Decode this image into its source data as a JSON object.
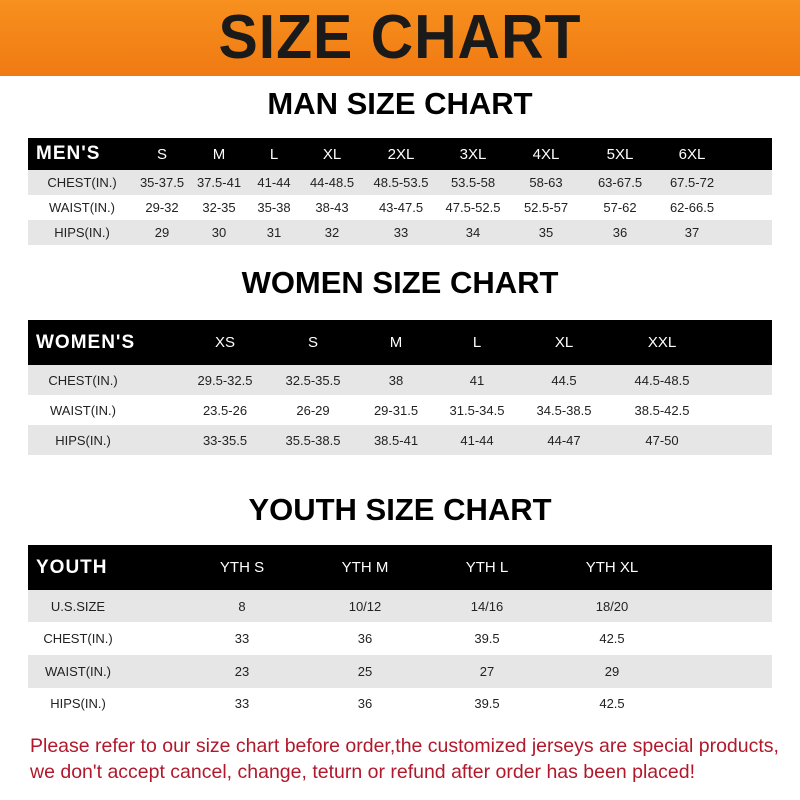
{
  "banner_title": "SIZE CHART",
  "men": {
    "title": "MAN SIZE CHART",
    "header": [
      "MEN'S",
      "S",
      "M",
      "L",
      "XL",
      "2XL",
      "3XL",
      "4XL",
      "5XL",
      "6XL"
    ],
    "rows": [
      [
        "CHEST(IN.)",
        "35-37.5",
        "37.5-41",
        "41-44",
        "44-48.5",
        "48.5-53.5",
        "53.5-58",
        "58-63",
        "63-67.5",
        "67.5-72"
      ],
      [
        "WAIST(IN.)",
        "29-32",
        "32-35",
        "35-38",
        "38-43",
        "43-47.5",
        "47.5-52.5",
        "52.5-57",
        "57-62",
        "62-66.5"
      ],
      [
        "HIPS(IN.)",
        "29",
        "30",
        "31",
        "32",
        "33",
        "34",
        "35",
        "36",
        "37"
      ]
    ]
  },
  "women": {
    "title": "WOMEN SIZE CHART",
    "header": [
      "WOMEN'S",
      "XS",
      "S",
      "M",
      "L",
      "XL",
      "XXL"
    ],
    "rows": [
      [
        "CHEST(IN.)",
        "29.5-32.5",
        "32.5-35.5",
        "38",
        "41",
        "44.5",
        "44.5-48.5"
      ],
      [
        "WAIST(IN.)",
        "23.5-26",
        "26-29",
        "29-31.5",
        "31.5-34.5",
        "34.5-38.5",
        "38.5-42.5"
      ],
      [
        "HIPS(IN.)",
        "33-35.5",
        "35.5-38.5",
        "38.5-41",
        "41-44",
        "44-47",
        "47-50"
      ]
    ]
  },
  "youth": {
    "title": "YOUTH SIZE CHART",
    "header": [
      "YOUTH",
      "YTH S",
      "YTH M",
      "YTH L",
      "YTH XL"
    ],
    "rows": [
      [
        "U.S.SIZE",
        "8",
        "10/12",
        "14/16",
        "18/20"
      ],
      [
        "CHEST(IN.)",
        "33",
        "36",
        "39.5",
        "42.5"
      ],
      [
        "WAIST(IN.)",
        "23",
        "25",
        "27",
        "29"
      ],
      [
        "HIPS(IN.)",
        "33",
        "36",
        "39.5",
        "42.5"
      ]
    ]
  },
  "footer": {
    "line1": "Please refer to our size chart before order,the customized jerseys are special products,",
    "line2": "we don't accept cancel, change, teturn or refund after order has been placed!"
  },
  "colors": {
    "banner": "#f58220",
    "header_row": "#000000",
    "stripe": "#e6e6e6",
    "notice": "#b2182b"
  }
}
